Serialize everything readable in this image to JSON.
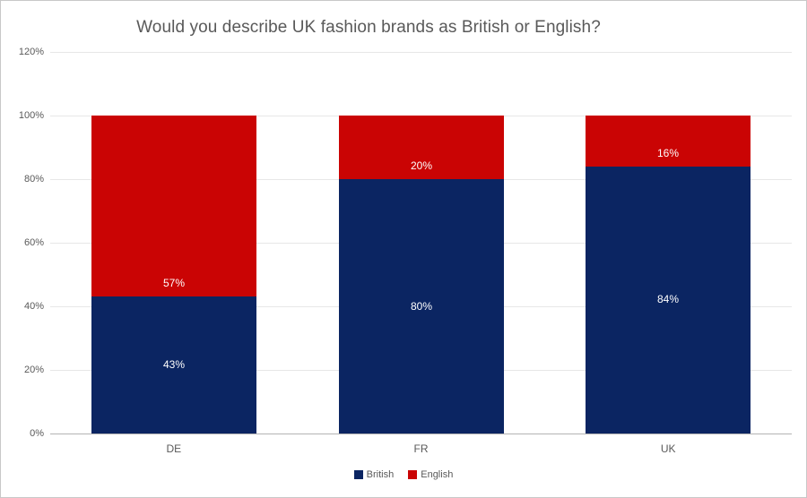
{
  "chart_data": {
    "type": "bar",
    "stacked": true,
    "title": "Would you describe UK fashion brands as British or English?",
    "categories": [
      "DE",
      "FR",
      "UK"
    ],
    "series": [
      {
        "name": "British",
        "color": "#0b2562",
        "values": [
          43,
          80,
          84
        ],
        "labels": [
          "43%",
          "80%",
          "84%"
        ],
        "label_position": "center"
      },
      {
        "name": "English",
        "color": "#ca0404",
        "values": [
          57,
          20,
          16
        ],
        "labels": [
          "57%",
          "20%",
          "16%"
        ],
        "label_position": "inside-base"
      }
    ],
    "y_ticks": [
      {
        "value": 0,
        "label": "0%"
      },
      {
        "value": 20,
        "label": "20%"
      },
      {
        "value": 40,
        "label": "40%"
      },
      {
        "value": 60,
        "label": "60%"
      },
      {
        "value": 80,
        "label": "80%"
      },
      {
        "value": 100,
        "label": "100%"
      },
      {
        "value": 120,
        "label": "120%"
      }
    ],
    "ylim": [
      0,
      120
    ],
    "grid": true,
    "legend_position": "bottom",
    "label_color": "#ffffff",
    "text_color": "#595959"
  }
}
